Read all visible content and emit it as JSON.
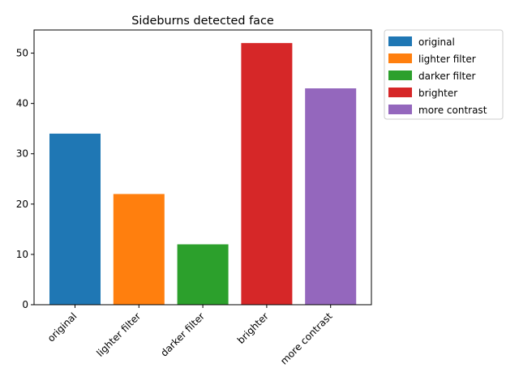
{
  "chart_data": {
    "type": "bar",
    "title": "Sideburns detected face",
    "xlabel": "",
    "ylabel": "",
    "categories": [
      "original",
      "lighter filter",
      "darker filter",
      "brighter",
      "more contrast"
    ],
    "values": [
      34,
      22,
      12,
      52,
      43
    ],
    "colors": [
      "#1f77b4",
      "#ff7f0e",
      "#2ca02c",
      "#d62728",
      "#9467bd"
    ],
    "ylim": [
      0,
      54.6
    ],
    "yticks": [
      0,
      10,
      20,
      30,
      40,
      50
    ],
    "grid": false,
    "legend_position": "outside-top-right",
    "legend": [
      "original",
      "lighter filter",
      "darker filter",
      "brighter",
      "more contrast"
    ]
  }
}
